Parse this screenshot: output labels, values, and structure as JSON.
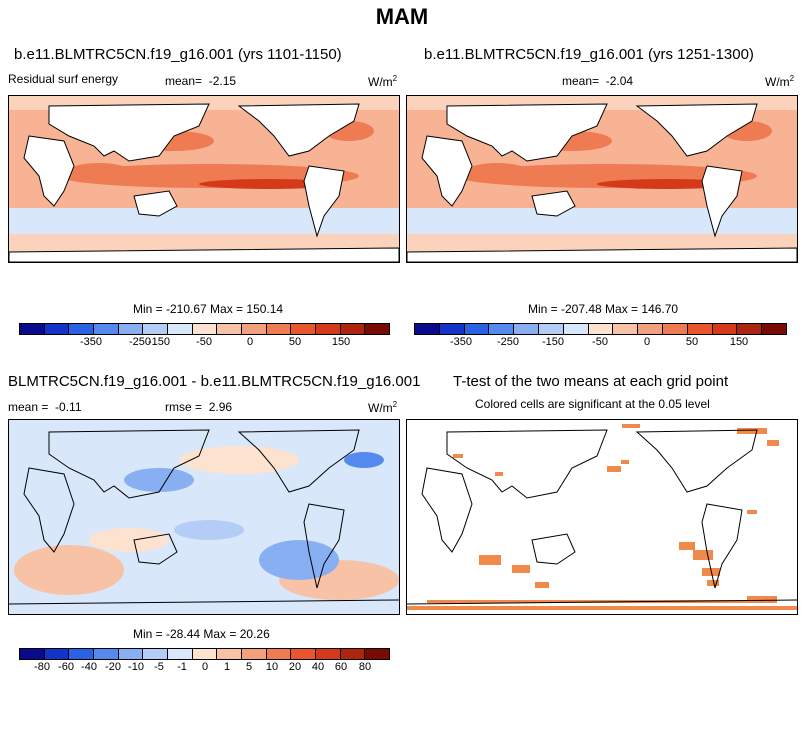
{
  "page_title": "MAM",
  "panels": {
    "top_left": {
      "title": "b.e11.BLMTRC5CN.f19_g16.001 (yrs 1101-1150)",
      "variable": "Residual surf energy",
      "mean_label": "mean=",
      "mean_value": "-2.15",
      "units_base": "W/m",
      "units_exp": "2",
      "stats": "Min = -210.67 Max = 150.14"
    },
    "top_right": {
      "title": "b.e11.BLMTRC5CN.f19_g16.001 (yrs 1251-1300)",
      "mean_label": "mean=",
      "mean_value": "-2.04",
      "units_base": "W/m",
      "units_exp": "2",
      "stats": "Min = -207.48 Max = 146.70"
    },
    "bottom_left": {
      "title": "BLMTRC5CN.f19_g16.001 - b.e11.BLMTRC5CN.f19_g16.001",
      "mean_label": "mean =",
      "mean_value": "-0.11",
      "rmse_label": "rmse =",
      "rmse_value": "2.96",
      "units_base": "W/m",
      "units_exp": "2",
      "stats": "Min = -28.44 Max =  20.26"
    },
    "bottom_right": {
      "title": "T-test of the two means at each grid point",
      "subtitle": "Colored cells are significant at the 0.05 level"
    }
  },
  "colorbar_top": {
    "colors": [
      "#0a0a8c",
      "#1433c8",
      "#2a62e6",
      "#5489ee",
      "#87aff2",
      "#b4cdf6",
      "#d9e7fa",
      "#fde3cf",
      "#f7c2a6",
      "#f3a07c",
      "#ee7b52",
      "#e9562d",
      "#d43a1a",
      "#ae250f",
      "#7a0b04"
    ],
    "labels": [
      "-350",
      "-250",
      "-150",
      "-50",
      "0",
      "50",
      "150"
    ]
  },
  "colorbar_bottom": {
    "colors": [
      "#0a0a8c",
      "#1433c8",
      "#2a62e6",
      "#5489ee",
      "#87aff2",
      "#b4cdf6",
      "#d9e7fa",
      "#fde3cf",
      "#f7c2a6",
      "#f3a07c",
      "#ee7b52",
      "#e9562d",
      "#d43a1a",
      "#ae250f",
      "#7a0b04"
    ],
    "labels": [
      "-80",
      "-60",
      "-40",
      "-20",
      "-10",
      "-5",
      "-1",
      "0",
      "1",
      "5",
      "10",
      "20",
      "40",
      "60",
      "80"
    ]
  },
  "legend_colors": {
    "mean_field_base": "#f7b394",
    "mean_field_tropics": "#ee7b52",
    "mean_field_peak": "#d43a1a",
    "southern_ocean": "#d9e7fa",
    "diff_base": "#d9e7fa",
    "diff_blue": "#87aff2",
    "diff_red": "#f7c2a6",
    "significance": "#f08a4b",
    "land": "#ffffff"
  }
}
